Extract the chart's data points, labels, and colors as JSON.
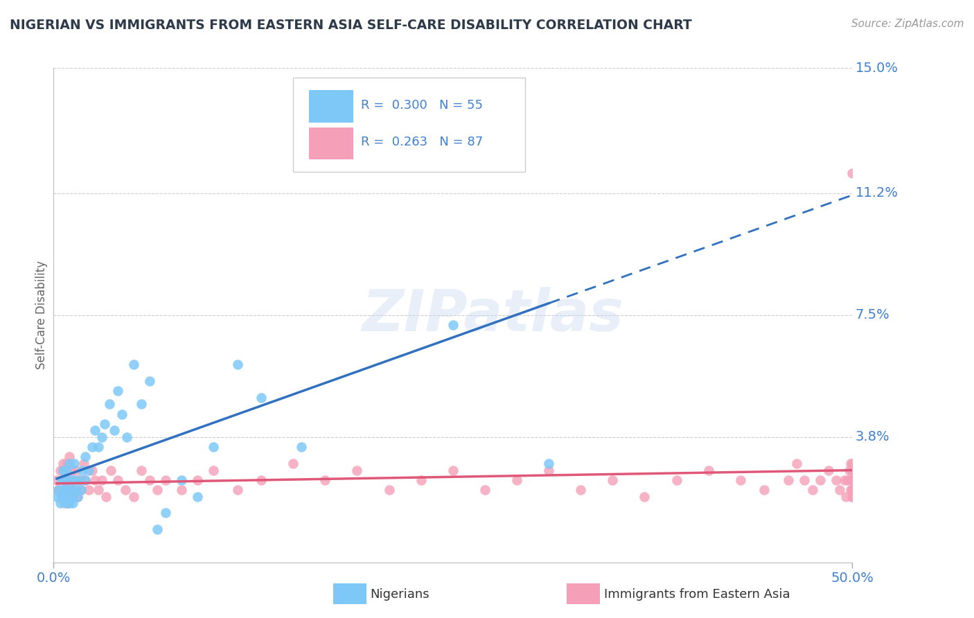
{
  "title": "NIGERIAN VS IMMIGRANTS FROM EASTERN ASIA SELF-CARE DISABILITY CORRELATION CHART",
  "source": "Source: ZipAtlas.com",
  "ylabel": "Self-Care Disability",
  "xlabel_nigerians": "Nigerians",
  "xlabel_immigrants": "Immigrants from Eastern Asia",
  "xlim": [
    0.0,
    0.5
  ],
  "ylim": [
    0.0,
    0.15
  ],
  "yticks_right": [
    0.038,
    0.075,
    0.112,
    0.15
  ],
  "ytick_labels_right": [
    "3.8%",
    "7.5%",
    "11.2%",
    "15.0%"
  ],
  "xtick_labels": [
    "0.0%",
    "50.0%"
  ],
  "R_nigerian": 0.3,
  "N_nigerian": 55,
  "R_immigrant": 0.263,
  "N_immigrant": 87,
  "color_nigerian": "#7ec8f7",
  "color_immigrant": "#f5a0b8",
  "color_nigerian_line": "#3070c0",
  "color_immigrant_line": "#e05878",
  "color_axis_labels": "#4080d0",
  "color_title": "#2d3a4a",
  "background_color": "#ffffff",
  "watermark": "ZIPatlas",
  "nigerian_x": [
    0.002,
    0.003,
    0.004,
    0.005,
    0.005,
    0.006,
    0.006,
    0.007,
    0.007,
    0.008,
    0.008,
    0.008,
    0.009,
    0.009,
    0.01,
    0.01,
    0.01,
    0.011,
    0.011,
    0.012,
    0.012,
    0.013,
    0.013,
    0.014,
    0.015,
    0.016,
    0.017,
    0.018,
    0.02,
    0.02,
    0.022,
    0.024,
    0.026,
    0.028,
    0.03,
    0.032,
    0.035,
    0.038,
    0.04,
    0.043,
    0.046,
    0.05,
    0.055,
    0.06,
    0.065,
    0.07,
    0.08,
    0.09,
    0.1,
    0.115,
    0.13,
    0.155,
    0.195,
    0.25,
    0.31
  ],
  "nigerian_y": [
    0.02,
    0.022,
    0.018,
    0.025,
    0.02,
    0.022,
    0.028,
    0.02,
    0.025,
    0.018,
    0.022,
    0.028,
    0.02,
    0.025,
    0.018,
    0.022,
    0.03,
    0.02,
    0.025,
    0.018,
    0.022,
    0.025,
    0.03,
    0.022,
    0.02,
    0.025,
    0.022,
    0.028,
    0.025,
    0.032,
    0.028,
    0.035,
    0.04,
    0.035,
    0.038,
    0.042,
    0.048,
    0.04,
    0.052,
    0.045,
    0.038,
    0.06,
    0.048,
    0.055,
    0.01,
    0.015,
    0.025,
    0.02,
    0.035,
    0.06,
    0.05,
    0.035,
    0.14,
    0.072,
    0.03
  ],
  "immigrant_x": [
    0.002,
    0.003,
    0.004,
    0.005,
    0.006,
    0.006,
    0.007,
    0.007,
    0.008,
    0.008,
    0.009,
    0.009,
    0.01,
    0.01,
    0.01,
    0.011,
    0.011,
    0.012,
    0.012,
    0.013,
    0.014,
    0.015,
    0.016,
    0.017,
    0.018,
    0.019,
    0.02,
    0.022,
    0.024,
    0.026,
    0.028,
    0.03,
    0.033,
    0.036,
    0.04,
    0.045,
    0.05,
    0.055,
    0.06,
    0.065,
    0.07,
    0.08,
    0.09,
    0.1,
    0.115,
    0.13,
    0.15,
    0.17,
    0.19,
    0.21,
    0.23,
    0.25,
    0.27,
    0.29,
    0.31,
    0.33,
    0.35,
    0.37,
    0.39,
    0.41,
    0.43,
    0.445,
    0.46,
    0.465,
    0.47,
    0.475,
    0.48,
    0.485,
    0.49,
    0.492,
    0.495,
    0.496,
    0.497,
    0.498,
    0.499,
    0.499,
    0.499,
    0.5,
    0.5,
    0.5,
    0.5,
    0.5,
    0.5,
    0.5,
    0.5,
    0.5,
    0.5
  ],
  "immigrant_y": [
    0.025,
    0.022,
    0.028,
    0.02,
    0.025,
    0.03,
    0.018,
    0.025,
    0.022,
    0.03,
    0.018,
    0.025,
    0.02,
    0.025,
    0.032,
    0.022,
    0.028,
    0.02,
    0.025,
    0.022,
    0.028,
    0.02,
    0.025,
    0.022,
    0.025,
    0.03,
    0.025,
    0.022,
    0.028,
    0.025,
    0.022,
    0.025,
    0.02,
    0.028,
    0.025,
    0.022,
    0.02,
    0.028,
    0.025,
    0.022,
    0.025,
    0.022,
    0.025,
    0.028,
    0.022,
    0.025,
    0.03,
    0.025,
    0.028,
    0.022,
    0.025,
    0.028,
    0.022,
    0.025,
    0.028,
    0.022,
    0.025,
    0.02,
    0.025,
    0.028,
    0.025,
    0.022,
    0.025,
    0.03,
    0.025,
    0.022,
    0.025,
    0.028,
    0.025,
    0.022,
    0.025,
    0.02,
    0.025,
    0.028,
    0.022,
    0.03,
    0.025,
    0.02,
    0.025,
    0.022,
    0.028,
    0.025,
    0.03,
    0.022,
    0.118,
    0.028,
    0.02
  ]
}
